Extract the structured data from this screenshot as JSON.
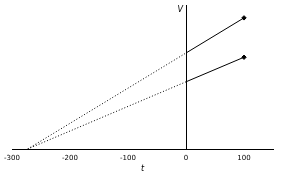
{
  "chart_data": {
    "type": "line",
    "xlabel": "t",
    "ylabel": "V",
    "xlim": [
      -300,
      150
    ],
    "xticks": [
      -300,
      -200,
      -100,
      0,
      100
    ],
    "ylim": [
      0,
      1.5
    ],
    "grid": false,
    "tick_labels": "x",
    "series": [
      {
        "type": "line",
        "color": "#000000",
        "line_style": "dotted",
        "marker": "none",
        "x": [
          -273,
          0
        ],
        "values": [
          0,
          1.0
        ]
      },
      {
        "type": "line",
        "color": "#000000",
        "line_style": "dotted",
        "marker": "none",
        "x": [
          -273,
          0
        ],
        "values": [
          0,
          0.7
        ]
      },
      {
        "type": "line",
        "color": "#000000",
        "line_style": "solid",
        "marker": "none",
        "x": [
          0,
          100
        ],
        "values": [
          1.0,
          1.366
        ]
      },
      {
        "type": "line",
        "color": "#000000",
        "line_style": "solid",
        "marker": "none",
        "x": [
          0,
          100
        ],
        "values": [
          0.7,
          0.956
        ]
      },
      {
        "type": "scatter",
        "color": "#000000",
        "line_style": "none",
        "marker": "diamond",
        "x": [
          100,
          100
        ],
        "values": [
          1.366,
          0.956
        ]
      }
    ]
  }
}
